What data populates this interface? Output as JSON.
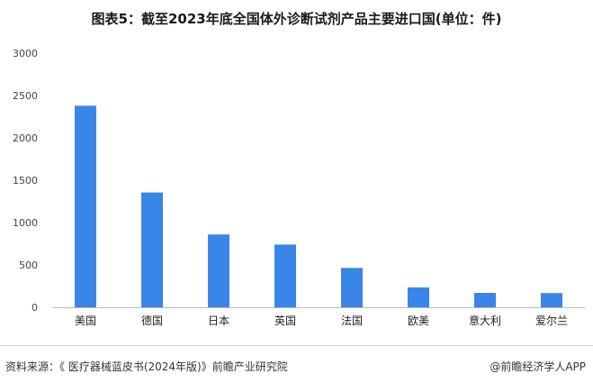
{
  "title": "图表5：截至2023年底全国体外诊断试剂产品主要进口国(单位：件)",
  "source": "资料来源：《 医疗器械蓝皮书(2024年版)》前瞻产业研究院",
  "credit": "@前瞻经济学人APP",
  "colors": {
    "bar": "#3a86e8",
    "axis": "#bdbdbd"
  },
  "chart_data": {
    "type": "bar",
    "title": "图表5：截至2023年底全国体外诊断试剂产品主要进口国(单位：件)",
    "xlabel": "",
    "ylabel": "",
    "categories": [
      "美国",
      "德国",
      "日本",
      "英国",
      "法国",
      "欧美",
      "意大利",
      "爱尔兰"
    ],
    "values": [
      2380,
      1355,
      860,
      740,
      465,
      235,
      170,
      168
    ],
    "yticks": [
      0,
      500,
      1000,
      1500,
      2000,
      2500,
      3000
    ],
    "ylim": [
      0,
      3000
    ],
    "grid": false,
    "legend": "none"
  }
}
